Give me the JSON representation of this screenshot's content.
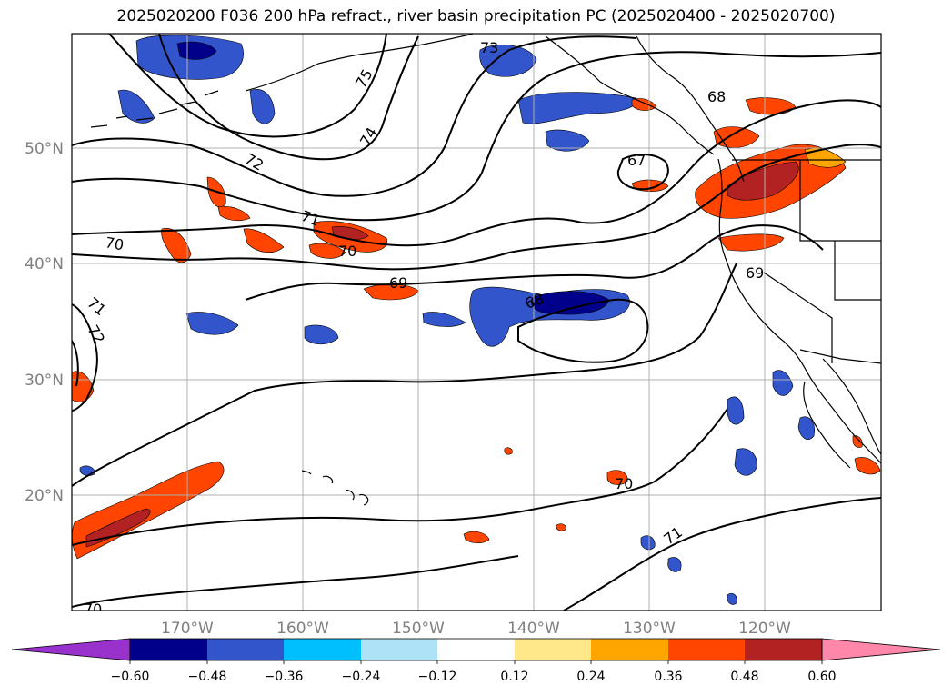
{
  "title": "2025020200 F036 200 hPa refract., river basin precipitation PC (2025020400 - 2025020700)",
  "map": {
    "lat_labels": [
      "50°N",
      "40°N",
      "30°N",
      "20°N"
    ],
    "lon_labels": [
      "170°W",
      "160°W",
      "150°W",
      "140°W",
      "130°W",
      "120°W"
    ],
    "contour_labels": [
      "73",
      "75",
      "74",
      "72",
      "71",
      "70",
      "70",
      "69",
      "68",
      "68",
      "67",
      "69",
      "71",
      "72",
      "70",
      "71",
      "70"
    ],
    "colors": {
      "coast": "#000000",
      "contour": "#000000",
      "grid": "#b0b0b0"
    }
  },
  "colorbar": {
    "tick_labels": [
      "−0.60",
      "−0.48",
      "−0.36",
      "−0.24",
      "−0.12",
      "0.12",
      "0.24",
      "0.36",
      "0.48",
      "0.60"
    ],
    "colors": [
      "#9932CC",
      "#00008B",
      "#3355CC",
      "#00BFFF",
      "#AEE3F7",
      "#FFFFFF",
      "#FFE88A",
      "#FFA500",
      "#FF4500",
      "#B22222",
      "#FF88AA"
    ]
  }
}
